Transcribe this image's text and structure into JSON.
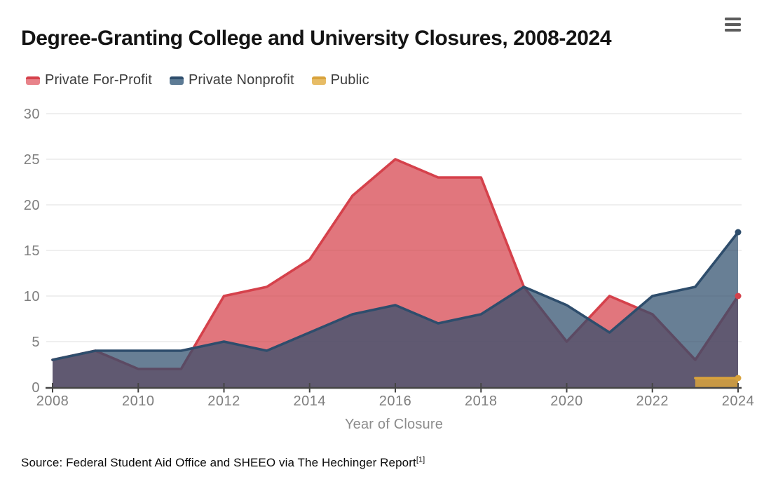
{
  "header": {
    "title": "Degree-Granting College and University Closures, 2008-2024",
    "menu_icon": "hamburger-icon"
  },
  "chart_data": {
    "type": "area",
    "title": "Degree-Granting College and University Closures, 2008-2024",
    "xlabel": "Year of Closure",
    "ylabel": "",
    "x": [
      2008,
      2009,
      2010,
      2011,
      2012,
      2013,
      2014,
      2015,
      2016,
      2017,
      2018,
      2019,
      2020,
      2021,
      2022,
      2023,
      2024
    ],
    "x_ticks": [
      2008,
      2010,
      2012,
      2014,
      2016,
      2018,
      2020,
      2022,
      2024
    ],
    "y_ticks": [
      0,
      5,
      10,
      15,
      20,
      25,
      30
    ],
    "ylim": [
      0,
      30
    ],
    "grid": "horizontal",
    "legend_position": "top-left",
    "end_markers": true,
    "axis_color": "#454545",
    "grid_color": "#eaeaea",
    "tick_label_color": "#7e7e7e",
    "series": [
      {
        "name": "Private For-Profit",
        "color": "#d5414b",
        "fill_opacity": 0.72,
        "legend_fill": "#e8838a",
        "values": [
          3,
          4,
          2,
          2,
          10,
          11,
          14,
          21,
          25,
          23,
          23,
          11,
          5,
          10,
          8,
          3,
          10
        ]
      },
      {
        "name": "Private Nonprofit",
        "color": "#2e4d6c",
        "fill_opacity": 0.72,
        "legend_fill": "#5d7b95",
        "values": [
          3,
          4,
          4,
          4,
          5,
          4,
          6,
          8,
          9,
          7,
          8,
          11,
          9,
          6,
          10,
          11,
          17
        ]
      },
      {
        "name": "Public",
        "color": "#d9a33c",
        "fill_opacity": 0.85,
        "legend_fill": "#e7bc66",
        "values": [
          null,
          null,
          null,
          null,
          null,
          null,
          null,
          null,
          null,
          null,
          null,
          null,
          null,
          null,
          null,
          1,
          1
        ]
      }
    ]
  },
  "footer": {
    "source": "Source: Federal Student Aid Office and SHEEO via The Hechinger Report",
    "citation": "[1]"
  }
}
